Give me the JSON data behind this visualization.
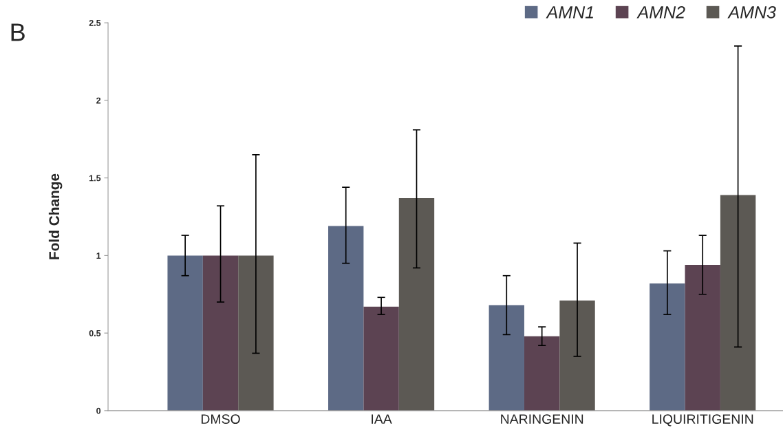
{
  "chart_data": {
    "type": "bar",
    "ylabel": "Fold Change",
    "annotations": [
      "B"
    ],
    "categories": [
      "DMSO",
      "IAA",
      "NARINGENIN",
      "LIQUIRITIGENIN"
    ],
    "series": [
      {
        "name": "AMN1",
        "color": "#5d6a85",
        "values": [
          1,
          1.19,
          0.68,
          0.82
        ],
        "errors": [
          [
            0.87,
            1.13
          ],
          [
            0.95,
            1.44
          ],
          [
            0.49,
            0.87
          ],
          [
            0.62,
            1.03
          ]
        ]
      },
      {
        "name": "AMN2",
        "color": "#5c4352",
        "values": [
          1,
          0.67,
          0.48,
          0.94
        ],
        "errors": [
          [
            0.7,
            1.32
          ],
          [
            0.62,
            0.73
          ],
          [
            0.42,
            0.54
          ],
          [
            0.75,
            1.13
          ]
        ]
      },
      {
        "name": "AMN3",
        "color": "#5c5954",
        "values": [
          1,
          1.37,
          0.71,
          1.39
        ],
        "errors": [
          [
            0.37,
            1.65
          ],
          [
            0.92,
            1.81
          ],
          [
            0.35,
            1.08
          ],
          [
            0.41,
            2.35
          ]
        ]
      }
    ],
    "ylim": [
      0,
      2.5
    ],
    "yticks": [
      0,
      0.5,
      1,
      1.5,
      2,
      2.5
    ],
    "grid": false,
    "legend": "top right"
  }
}
